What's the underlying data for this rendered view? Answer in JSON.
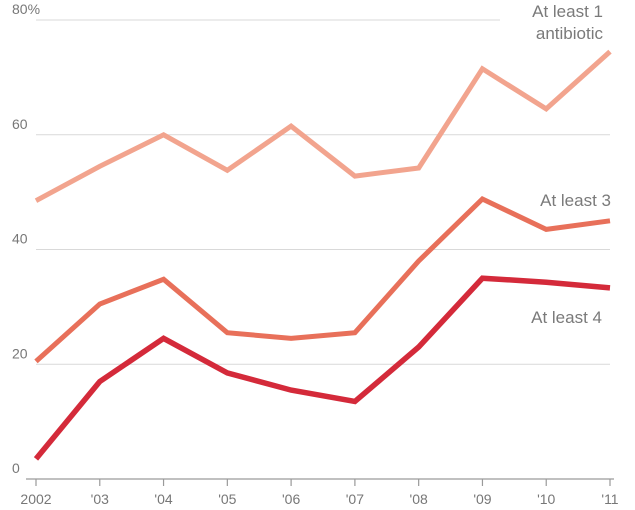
{
  "chart_data": {
    "type": "line",
    "title": "",
    "xlabel": "",
    "ylabel": "",
    "x": [
      "2002",
      "'03",
      "'04",
      "'05",
      "'06",
      "'07",
      "'08",
      "'09",
      "'10",
      "'11"
    ],
    "y_ticks": [
      "0",
      "20",
      "40",
      "60",
      "80%"
    ],
    "ylim": [
      0,
      80
    ],
    "grid": true,
    "series": [
      {
        "name": "At least 1 antibiotic",
        "label_lines": [
          "At least 1",
          "antibiotic"
        ],
        "color": "#f2a48e",
        "values": [
          48.5,
          54.5,
          60.0,
          53.8,
          61.5,
          52.8,
          54.2,
          71.5,
          64.5,
          74.5
        ]
      },
      {
        "name": "At least 3",
        "label_lines": [
          "At least 3"
        ],
        "color": "#e8705a",
        "values": [
          20.5,
          30.5,
          34.8,
          25.5,
          24.5,
          25.5,
          38.0,
          48.8,
          43.5,
          45.0
        ]
      },
      {
        "name": "At least 4",
        "label_lines": [
          "At least 4"
        ],
        "color": "#d42a3a",
        "values": [
          3.5,
          17.0,
          24.5,
          18.5,
          15.5,
          13.5,
          23.0,
          35.0,
          34.3,
          33.3
        ]
      }
    ]
  }
}
